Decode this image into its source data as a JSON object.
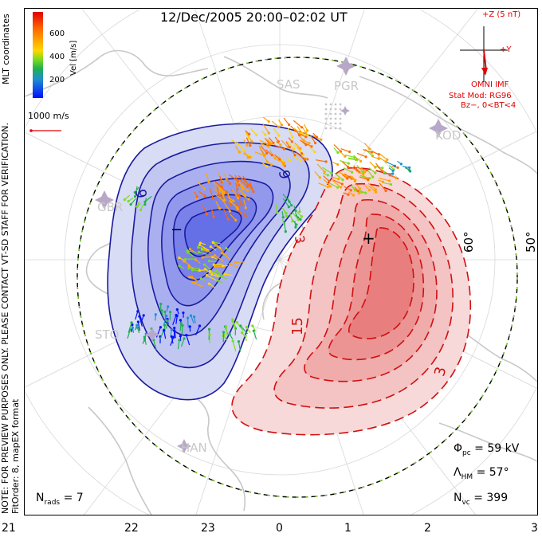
{
  "title": "12/Dec/2005 20:00–02:02 UT",
  "side_note": {
    "line1": "NOTE: FOR PREVIEW PURPOSES ONLY. PLEASE CONTACT VT-SD STAFF FOR VERIFICATION.",
    "line2": "FitOrder: 8, mapEX format"
  },
  "coordinates_label": "MLT coordinates",
  "velocity_scale": {
    "label": "Vel [m/s]",
    "ticks": [
      "600",
      "400",
      "200"
    ],
    "reference_vector": "1000 m/s"
  },
  "imf": {
    "plus_z": "+Z (5 nT)",
    "plus_y": "+Y",
    "source": "OMNI IMF",
    "model": "Stat Mod: RG96",
    "condition": "Bz−, 0<BT<4"
  },
  "latitude_labels": [
    "60°",
    "50°"
  ],
  "contour_labels": [
    "9",
    "9",
    "3",
    "15",
    "3"
  ],
  "potential_markers": {
    "min": "−",
    "max": "+"
  },
  "stations": [
    "SAS",
    "PGR",
    "KOD",
    "GBR",
    "STO",
    "HAN"
  ],
  "stats": {
    "phi_pc": {
      "symbol": "Φ",
      "sub": "pc",
      "value": "= 59 kV"
    },
    "lambda_hm": {
      "symbol": "Λ",
      "sub": "HM",
      "value": "= 57°"
    },
    "n_vc": {
      "symbol": "N",
      "sub": "vc",
      "value": "= 399"
    },
    "n_rads": {
      "symbol": "N",
      "sub": "rads",
      "value": "= 7"
    }
  },
  "hour_labels": [
    "21",
    "22",
    "23",
    "0",
    "1",
    "2",
    "3"
  ],
  "colors": {
    "negative_cell": "#5a5af0",
    "positive_cell": "#f06a6a",
    "negative_contour": "#1a1aa0",
    "positive_contour": "#d01010",
    "coast": "#c8c8c8"
  }
}
